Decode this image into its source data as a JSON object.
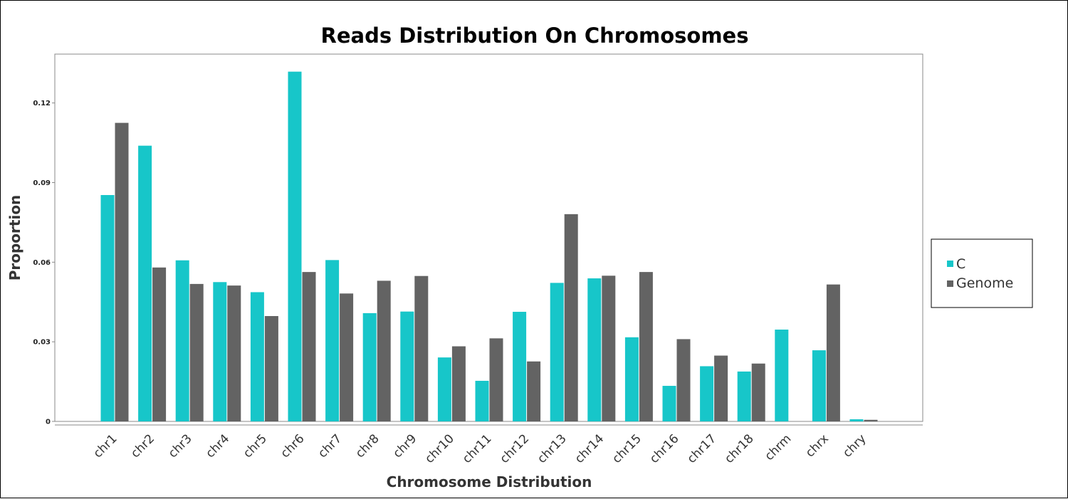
{
  "chart_data": {
    "type": "bar",
    "title": "Reads Distribution On Chromosomes",
    "xlabel": "Chromosome Distribution",
    "ylabel": "Proportion",
    "ylim": [
      0,
      0.1318
    ],
    "yticks": [
      0,
      0.03,
      0.06,
      0.09,
      0.12
    ],
    "ytick_labels": [
      "0",
      "0.03",
      "0.06",
      "0.09",
      "0.12"
    ],
    "grid": false,
    "legend_position": "right",
    "categories": [
      "chr1",
      "chr2",
      "chr3",
      "chr4",
      "chr5",
      "chr6",
      "chr7",
      "chr8",
      "chr9",
      "chr10",
      "chr11",
      "chr12",
      "chr13",
      "chr14",
      "chr15",
      "chr16",
      "chr17",
      "chr18",
      "chrm",
      "chrx",
      "chry"
    ],
    "series": [
      {
        "name": "C",
        "color": "#17c6c9",
        "values": [
          0.0853,
          0.1039,
          0.0607,
          0.0525,
          0.0487,
          0.1318,
          0.0608,
          0.0408,
          0.0414,
          0.0241,
          0.0153,
          0.0413,
          0.0522,
          0.0539,
          0.0317,
          0.0134,
          0.0208,
          0.0188,
          0.0346,
          0.0268,
          0.0008
        ]
      },
      {
        "name": "Genome",
        "color": "#636363",
        "values": [
          0.1125,
          0.058,
          0.0518,
          0.0512,
          0.0397,
          0.0563,
          0.0482,
          0.053,
          0.0548,
          0.0283,
          0.0313,
          0.0226,
          0.0781,
          0.0549,
          0.0563,
          0.031,
          0.0248,
          0.0218,
          0.0,
          0.0516,
          0.0006
        ]
      }
    ]
  }
}
